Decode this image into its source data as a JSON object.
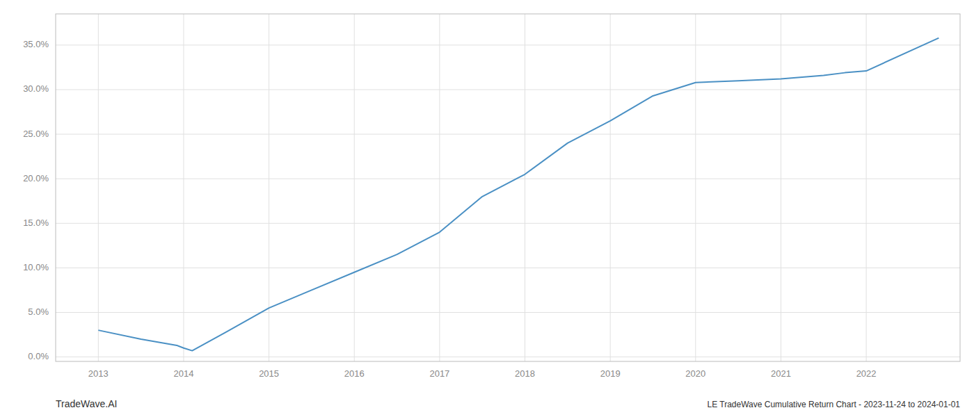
{
  "chart_data": {
    "type": "line",
    "x": [
      2013.0,
      2013.5,
      2013.92,
      2014.0,
      2014.1,
      2014.5,
      2015.0,
      2015.5,
      2016.0,
      2016.5,
      2017.0,
      2017.5,
      2018.0,
      2018.5,
      2019.0,
      2019.5,
      2020.0,
      2020.5,
      2021.0,
      2021.5,
      2021.75,
      2022.0,
      2022.85
    ],
    "values": [
      0.03,
      0.02,
      0.013,
      0.01,
      0.007,
      0.028,
      0.055,
      0.075,
      0.095,
      0.115,
      0.14,
      0.18,
      0.205,
      0.24,
      0.265,
      0.293,
      0.308,
      0.31,
      0.312,
      0.316,
      0.319,
      0.321,
      0.358
    ],
    "color": "#4a90c4",
    "xlim": [
      2012.5,
      2023.1
    ],
    "ylim": [
      -0.005,
      0.385
    ],
    "xticks": [
      2013,
      2014,
      2015,
      2016,
      2017,
      2018,
      2019,
      2020,
      2021,
      2022
    ],
    "yticks": [
      {
        "value": 0.0,
        "label": "0.0%"
      },
      {
        "value": 0.05,
        "label": "5.0%"
      },
      {
        "value": 0.1,
        "label": "10.0%"
      },
      {
        "value": 0.15,
        "label": "15.0%"
      },
      {
        "value": 0.2,
        "label": "20.0%"
      },
      {
        "value": 0.25,
        "label": "25.0%"
      },
      {
        "value": 0.3,
        "label": "30.0%"
      },
      {
        "value": 0.35,
        "label": "35.0%"
      }
    ],
    "grid": true,
    "annotations": [
      "TradeWave.AI",
      "LE TradeWave Cumulative Return Chart - 2023-11-24 to 2024-01-01"
    ]
  }
}
